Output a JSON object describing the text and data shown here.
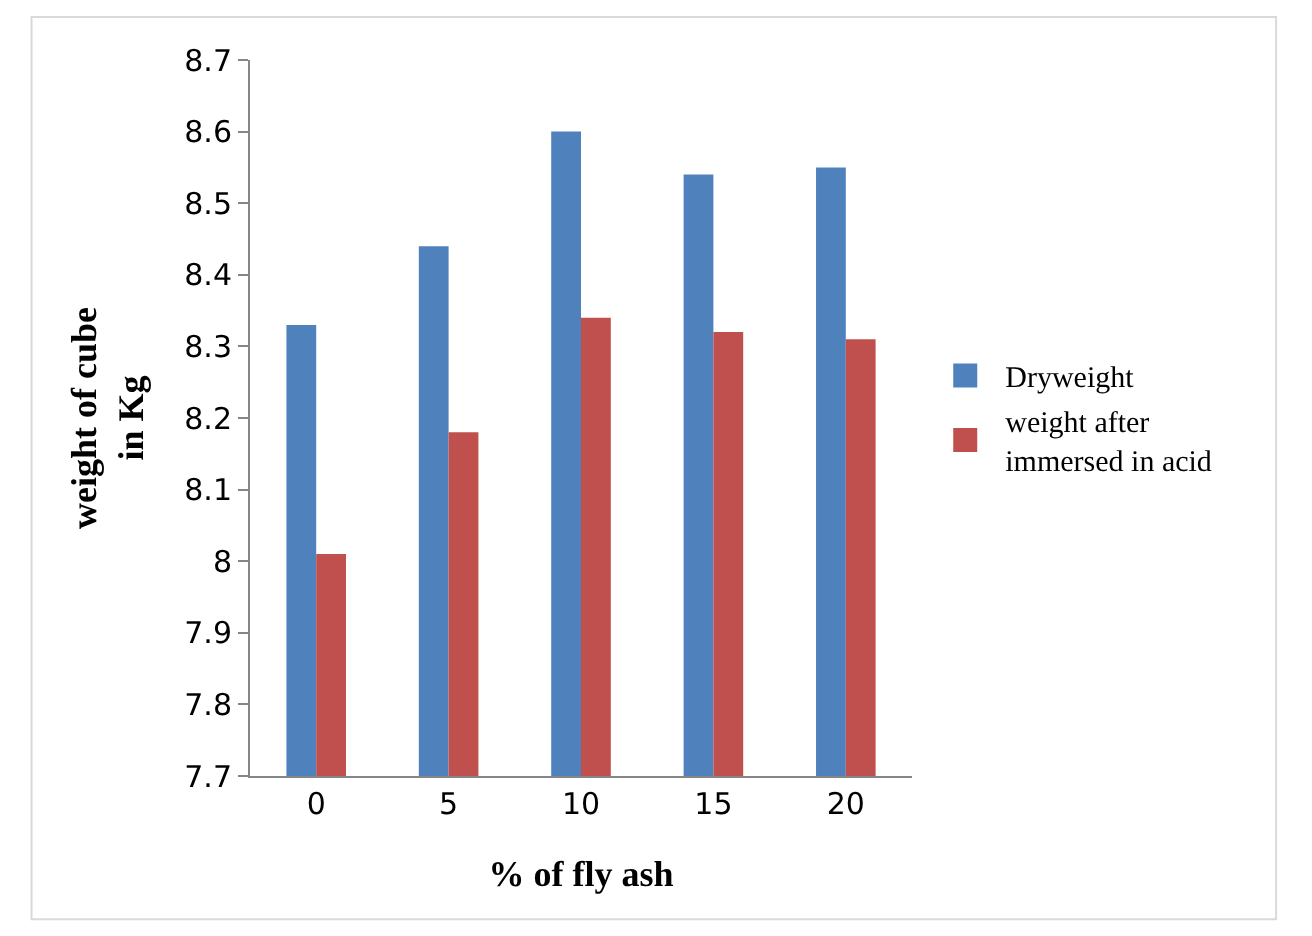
{
  "chart_data": {
    "type": "bar",
    "xlabel": "% of fly ash",
    "ylabel": "weight of cube in Kg",
    "categories": [
      "0",
      "5",
      "10",
      "15",
      "20"
    ],
    "series": [
      {
        "name": "Dryweight",
        "color": "#4f81bd",
        "values": [
          8.33,
          8.44,
          8.6,
          8.54,
          8.55
        ]
      },
      {
        "name": "weight after immersed in acid",
        "color": "#c0504d",
        "values": [
          8.01,
          8.18,
          8.34,
          8.32,
          8.31
        ]
      }
    ],
    "ylim": [
      7.7,
      8.7
    ],
    "yticks": [
      7.7,
      7.8,
      7.9,
      8,
      8.1,
      8.2,
      8.3,
      8.4,
      8.5,
      8.6,
      8.7
    ],
    "grid": false,
    "legend": "right"
  }
}
